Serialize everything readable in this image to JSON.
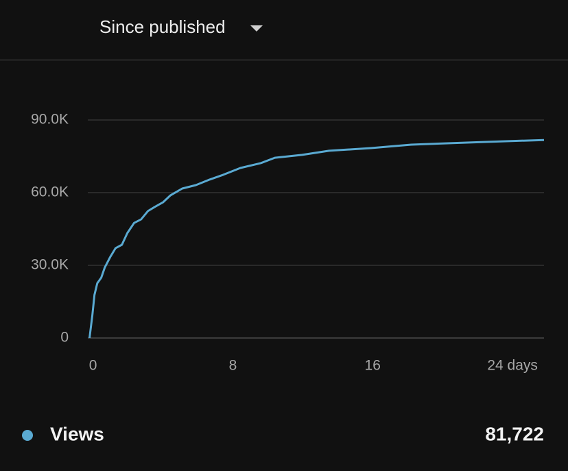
{
  "header": {
    "dropdown": "Since published"
  },
  "chart_data": {
    "type": "line",
    "x": [
      -0.2,
      -0.04,
      0.08,
      0.24,
      0.47,
      0.67,
      0.98,
      1.29,
      1.65,
      1.96,
      2.35,
      2.75,
      3.14,
      3.53,
      4.0,
      4.43,
      5.1,
      5.88,
      6.67,
      7.45,
      8.43,
      9.6,
      10.4,
      11.96,
      13.5,
      15.9,
      18.2,
      22.2,
      25.8
    ],
    "series": [
      {
        "name": "Views",
        "color": "#5aaad2",
        "values": [
          0,
          9300,
          17800,
          22600,
          24900,
          29100,
          33400,
          37100,
          38500,
          43300,
          47500,
          49000,
          52400,
          54100,
          56000,
          58900,
          61700,
          63100,
          65400,
          67400,
          70200,
          72200,
          74400,
          75600,
          77300,
          78400,
          79800,
          80900,
          81722
        ]
      }
    ],
    "xlim": [
      -0.3,
      25.8
    ],
    "ylim": [
      0,
      90000
    ],
    "xticks": [
      0,
      8,
      16,
      {
        "value": 24,
        "label": "24 days"
      }
    ],
    "yticks": [
      0,
      {
        "value": 30000,
        "label": "30.0K"
      },
      {
        "value": 60000,
        "label": "60.0K"
      },
      {
        "value": 90000,
        "label": "90.0K"
      }
    ],
    "grid": true
  },
  "summary": {
    "total": "81,722"
  }
}
